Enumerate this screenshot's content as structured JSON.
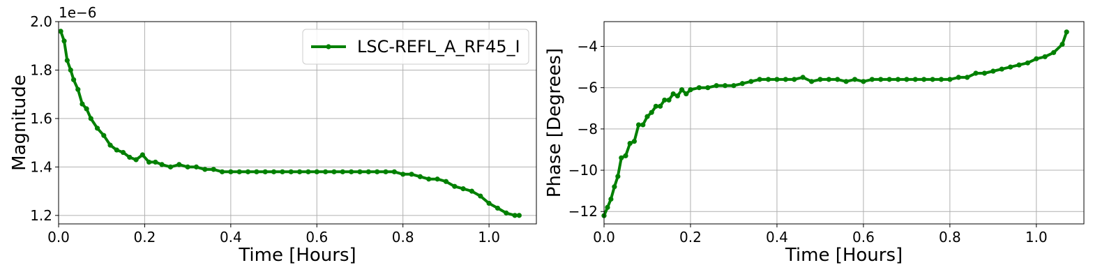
{
  "chart_data": [
    {
      "type": "line",
      "xlabel": "Time [Hours]",
      "ylabel": "Magnitude",
      "xlim": [
        0.0,
        1.11
      ],
      "ylim": [
        1.165,
        2.0
      ],
      "y_offset_text": "1e−6",
      "xticks": [
        0.0,
        0.2,
        0.4,
        0.6,
        0.8,
        1.0
      ],
      "xtick_labels": [
        "0.0",
        "0.2",
        "0.4",
        "0.6",
        "0.8",
        "1.0"
      ],
      "yticks": [
        1.2,
        1.4,
        1.6,
        1.8,
        2.0
      ],
      "ytick_labels": [
        "1.2",
        "1.4",
        "1.6",
        "1.8",
        "2.0"
      ],
      "grid": true,
      "legend": "top-right",
      "series": [
        {
          "name": "LSC-REFL_A_RF45_I",
          "color": "#008000",
          "marker": "circle",
          "x": [
            0.005,
            0.013,
            0.02,
            0.028,
            0.035,
            0.045,
            0.055,
            0.065,
            0.075,
            0.09,
            0.105,
            0.12,
            0.135,
            0.15,
            0.165,
            0.18,
            0.195,
            0.21,
            0.225,
            0.24,
            0.26,
            0.28,
            0.3,
            0.32,
            0.34,
            0.36,
            0.38,
            0.4,
            0.42,
            0.44,
            0.46,
            0.48,
            0.5,
            0.52,
            0.54,
            0.56,
            0.58,
            0.6,
            0.62,
            0.64,
            0.66,
            0.68,
            0.7,
            0.72,
            0.74,
            0.76,
            0.78,
            0.8,
            0.82,
            0.84,
            0.86,
            0.88,
            0.9,
            0.92,
            0.94,
            0.96,
            0.98,
            1.0,
            1.02,
            1.04,
            1.06,
            1.07
          ],
          "y": [
            1.96,
            1.92,
            1.84,
            1.8,
            1.76,
            1.72,
            1.66,
            1.64,
            1.6,
            1.56,
            1.53,
            1.49,
            1.47,
            1.46,
            1.44,
            1.43,
            1.45,
            1.42,
            1.42,
            1.41,
            1.4,
            1.41,
            1.4,
            1.4,
            1.39,
            1.39,
            1.38,
            1.38,
            1.38,
            1.38,
            1.38,
            1.38,
            1.38,
            1.38,
            1.38,
            1.38,
            1.38,
            1.38,
            1.38,
            1.38,
            1.38,
            1.38,
            1.38,
            1.38,
            1.38,
            1.38,
            1.38,
            1.37,
            1.37,
            1.36,
            1.35,
            1.35,
            1.34,
            1.32,
            1.31,
            1.3,
            1.28,
            1.25,
            1.23,
            1.21,
            1.2,
            1.2
          ]
        }
      ]
    },
    {
      "type": "line",
      "xlabel": "Time [Hours]",
      "ylabel": "Phase [Degrees]",
      "xlim": [
        0.0,
        1.11
      ],
      "ylim": [
        -12.6,
        -2.8
      ],
      "xticks": [
        0.0,
        0.2,
        0.4,
        0.6,
        0.8,
        1.0
      ],
      "xtick_labels": [
        "0.0",
        "0.2",
        "0.4",
        "0.6",
        "0.8",
        "1.0"
      ],
      "yticks": [
        -12,
        -10,
        -8,
        -6,
        -4
      ],
      "ytick_labels": [
        "−12",
        "−10",
        "−8",
        "−6",
        "−4"
      ],
      "grid": true,
      "series": [
        {
          "color": "#008000",
          "marker": "circle",
          "x": [
            0.0,
            0.008,
            0.016,
            0.024,
            0.032,
            0.04,
            0.05,
            0.06,
            0.07,
            0.08,
            0.09,
            0.1,
            0.11,
            0.12,
            0.13,
            0.14,
            0.15,
            0.16,
            0.17,
            0.18,
            0.19,
            0.2,
            0.22,
            0.24,
            0.26,
            0.28,
            0.3,
            0.32,
            0.34,
            0.36,
            0.38,
            0.4,
            0.42,
            0.44,
            0.46,
            0.48,
            0.5,
            0.52,
            0.54,
            0.56,
            0.58,
            0.6,
            0.62,
            0.64,
            0.66,
            0.68,
            0.7,
            0.72,
            0.74,
            0.76,
            0.78,
            0.8,
            0.82,
            0.84,
            0.86,
            0.88,
            0.9,
            0.92,
            0.94,
            0.96,
            0.98,
            1.0,
            1.02,
            1.04,
            1.06,
            1.07
          ],
          "y": [
            -12.2,
            -11.8,
            -11.4,
            -10.8,
            -10.3,
            -9.4,
            -9.3,
            -8.7,
            -8.6,
            -7.8,
            -7.8,
            -7.4,
            -7.2,
            -6.9,
            -6.9,
            -6.6,
            -6.6,
            -6.3,
            -6.4,
            -6.1,
            -6.3,
            -6.1,
            -6.0,
            -6.0,
            -5.9,
            -5.9,
            -5.9,
            -5.8,
            -5.7,
            -5.6,
            -5.6,
            -5.6,
            -5.6,
            -5.6,
            -5.5,
            -5.7,
            -5.6,
            -5.6,
            -5.6,
            -5.7,
            -5.6,
            -5.7,
            -5.6,
            -5.6,
            -5.6,
            -5.6,
            -5.6,
            -5.6,
            -5.6,
            -5.6,
            -5.6,
            -5.6,
            -5.5,
            -5.5,
            -5.3,
            -5.3,
            -5.2,
            -5.1,
            -5.0,
            -4.9,
            -4.8,
            -4.6,
            -4.5,
            -4.3,
            -3.9,
            -3.3
          ]
        }
      ]
    }
  ]
}
